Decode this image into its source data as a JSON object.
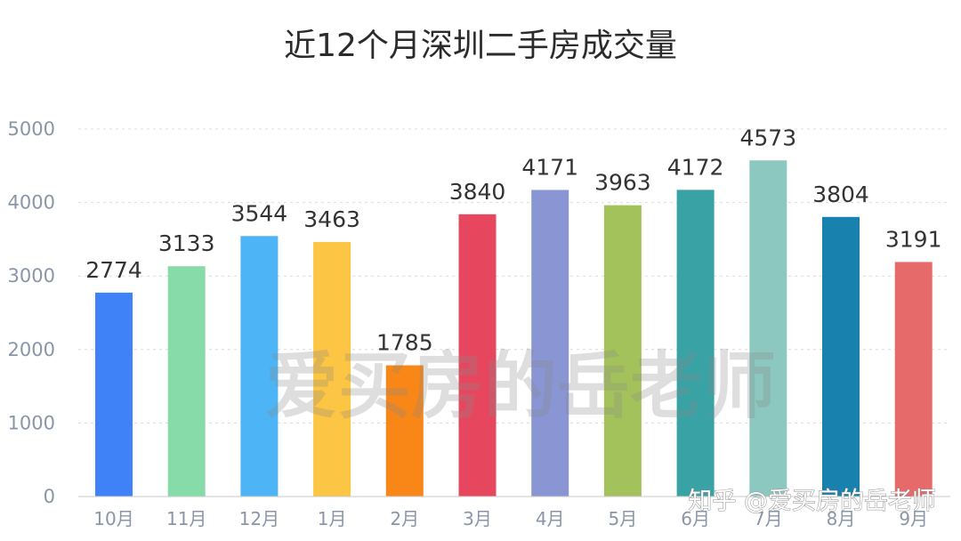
{
  "chart_data": {
    "type": "bar",
    "title": "近12个月深圳二手房成交量",
    "categories": [
      "10月",
      "11月",
      "12月",
      "1月",
      "2月",
      "3月",
      "4月",
      "5月",
      "6月",
      "7月",
      "8月",
      "9月"
    ],
    "values": [
      2774,
      3133,
      3544,
      3463,
      1785,
      3840,
      4171,
      3963,
      4172,
      4573,
      3804,
      3191
    ],
    "colors": [
      "#3f82f7",
      "#86dba8",
      "#4db5f5",
      "#fcc543",
      "#f98717",
      "#e6475e",
      "#8a95d4",
      "#a3c25b",
      "#38a2a5",
      "#8dc8c0",
      "#1981ad",
      "#e76a6a"
    ],
    "ylim": [
      0,
      5000
    ],
    "yticks": [
      0,
      1000,
      2000,
      3000,
      4000,
      5000
    ],
    "grid": true,
    "legend": "none"
  },
  "watermark": "爱买房的岳老师",
  "corner_watermark": "知乎 @爱买房的岳老师"
}
